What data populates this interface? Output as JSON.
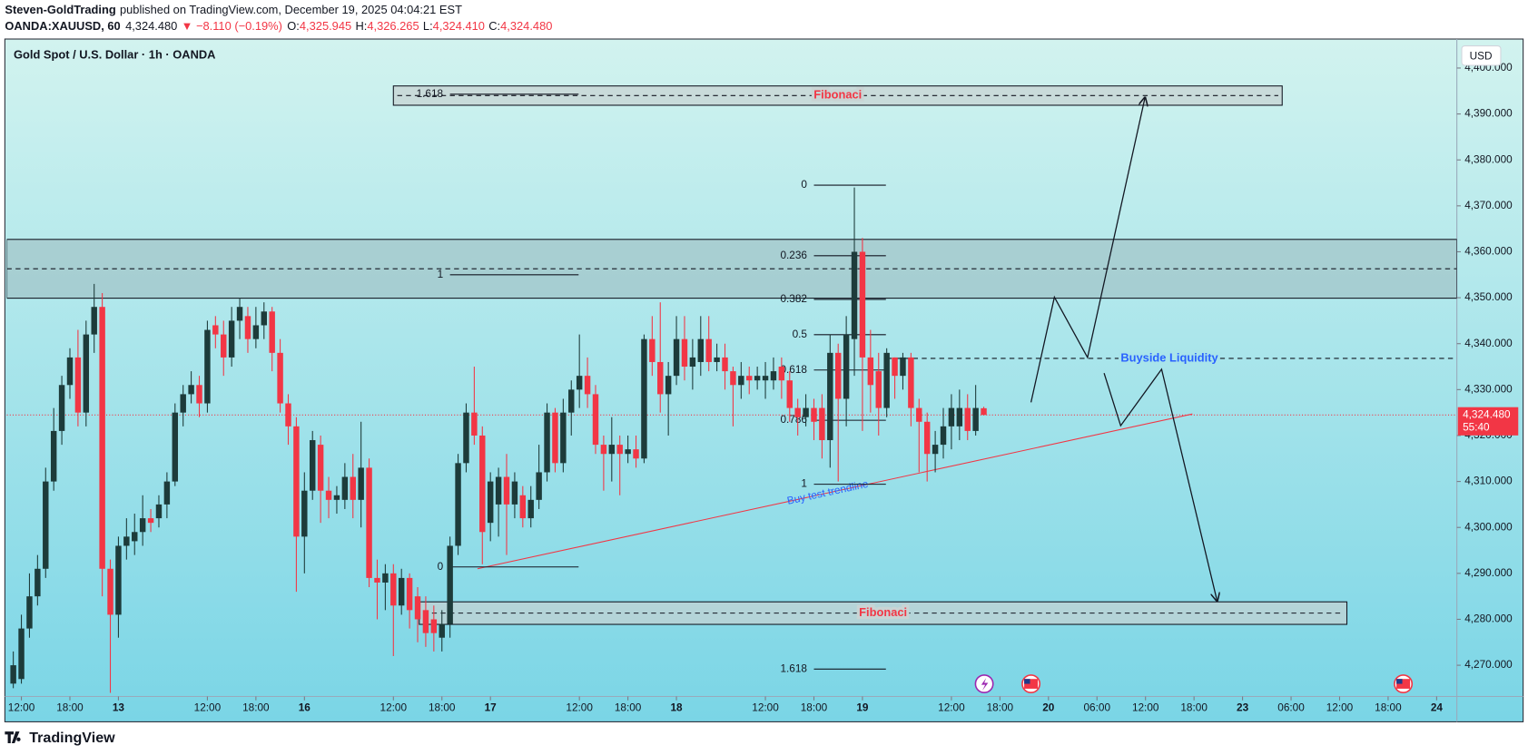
{
  "header": {
    "author": "Steven-GoldTrading",
    "published": "published on TradingView.com, December 19, 2025 04:04:21 EST",
    "symbol": "OANDA:XAUUSD, 60",
    "last": "4,324.480",
    "change": "▼ −8.110 (−0.19%)",
    "ohlc": [
      {
        "label": "O:",
        "value": "4,325.945"
      },
      {
        "label": "H:",
        "value": "4,326.265"
      },
      {
        "label": "L:",
        "value": "4,324.410"
      },
      {
        "label": "C:",
        "value": "4,324.480"
      }
    ]
  },
  "footer": {
    "brand": "TradingView"
  },
  "chart_data": {
    "type": "candlestick",
    "title": "Gold Spot / U.S. Dollar · 1h · OANDA",
    "currency": "USD",
    "up_color": "#1d3b3a",
    "down_color": "#f23645",
    "grid": false,
    "xlim": [
      -1.8,
      177.5
    ],
    "xticks": [
      {
        "value": 0,
        "label": "12:00"
      },
      {
        "value": 6,
        "label": "18:00"
      },
      {
        "value": 12,
        "label": "13"
      },
      {
        "value": 23,
        "label": "12:00"
      },
      {
        "value": 29,
        "label": "18:00"
      },
      {
        "value": 35,
        "label": "16"
      },
      {
        "value": 46,
        "label": "12:00"
      },
      {
        "value": 52,
        "label": "18:00"
      },
      {
        "value": 58,
        "label": "17"
      },
      {
        "value": 69,
        "label": "12:00"
      },
      {
        "value": 75,
        "label": "18:00"
      },
      {
        "value": 81,
        "label": "18"
      },
      {
        "value": 92,
        "label": "12:00"
      },
      {
        "value": 98,
        "label": "18:00"
      },
      {
        "value": 104,
        "label": "19"
      },
      {
        "value": 115,
        "label": "12:00"
      },
      {
        "value": 121,
        "label": "18:00"
      },
      {
        "value": 127,
        "label": "20"
      },
      {
        "value": 133,
        "label": "06:00"
      },
      {
        "value": 139,
        "label": "12:00"
      },
      {
        "value": 145,
        "label": "18:00"
      },
      {
        "value": 151,
        "label": "23"
      },
      {
        "value": 157,
        "label": "06:00"
      },
      {
        "value": 163,
        "label": "12:00"
      },
      {
        "value": 169,
        "label": "18:00"
      },
      {
        "value": 175,
        "label": "24"
      }
    ],
    "ylim": [
      4263.2,
      4406.1
    ],
    "yticks": [
      {
        "value": 4270,
        "label": "4,270.000"
      },
      {
        "value": 4280,
        "label": "4,280.000"
      },
      {
        "value": 4290,
        "label": "4,290.000"
      },
      {
        "value": 4300,
        "label": "4,300.000"
      },
      {
        "value": 4310,
        "label": "4,310.000"
      },
      {
        "value": 4320,
        "label": "4,320.000"
      },
      {
        "value": 4330,
        "label": "4,330.000"
      },
      {
        "value": 4340,
        "label": "4,340.000"
      },
      {
        "value": 4350,
        "label": "4,350.000"
      },
      {
        "value": 4360,
        "label": "4,360.000"
      },
      {
        "value": 4370,
        "label": "4,370.000"
      },
      {
        "value": 4380,
        "label": "4,380.000"
      },
      {
        "value": 4390,
        "label": "4,390.000"
      },
      {
        "value": 4400,
        "label": "4,400.000"
      }
    ],
    "last_price": {
      "value": 4324.48,
      "label": "4,324.480"
    },
    "countdown": "55:40",
    "candles": [
      {
        "x": -1,
        "o": 4266,
        "h": 4273,
        "l": 4265,
        "c": 4270
      },
      {
        "x": 0,
        "o": 4267,
        "h": 4281,
        "l": 4266,
        "c": 4278
      },
      {
        "x": 1,
        "o": 4278,
        "h": 4290,
        "l": 4276,
        "c": 4285
      },
      {
        "x": 2,
        "o": 4285,
        "h": 4294,
        "l": 4283,
        "c": 4291
      },
      {
        "x": 3,
        "o": 4291,
        "h": 4313,
        "l": 4289,
        "c": 4310
      },
      {
        "x": 4,
        "o": 4310,
        "h": 4326,
        "l": 4308,
        "c": 4321
      },
      {
        "x": 5,
        "o": 4321,
        "h": 4333,
        "l": 4318,
        "c": 4331
      },
      {
        "x": 6,
        "o": 4331,
        "h": 4339,
        "l": 4328,
        "c": 4337
      },
      {
        "x": 7,
        "o": 4337,
        "h": 4343,
        "l": 4322,
        "c": 4325
      },
      {
        "x": 8,
        "o": 4325,
        "h": 4345,
        "l": 4322,
        "c": 4342
      },
      {
        "x": 9,
        "o": 4342,
        "h": 4353,
        "l": 4338,
        "c": 4348
      },
      {
        "x": 10,
        "o": 4348,
        "h": 4351,
        "l": 4285,
        "c": 4291
      },
      {
        "x": 11,
        "o": 4291,
        "h": 4293,
        "l": 4264,
        "c": 4281
      },
      {
        "x": 12,
        "o": 4281,
        "h": 4298,
        "l": 4276,
        "c": 4296
      },
      {
        "x": 13,
        "o": 4296,
        "h": 4302,
        "l": 4293,
        "c": 4298
      },
      {
        "x": 14,
        "o": 4297,
        "h": 4303,
        "l": 4294,
        "c": 4299
      },
      {
        "x": 15,
        "o": 4299,
        "h": 4307,
        "l": 4296,
        "c": 4302
      },
      {
        "x": 16,
        "o": 4302,
        "h": 4304,
        "l": 4299,
        "c": 4301
      },
      {
        "x": 17,
        "o": 4302,
        "h": 4307,
        "l": 4300,
        "c": 4305
      },
      {
        "x": 18,
        "o": 4305,
        "h": 4312,
        "l": 4302,
        "c": 4310
      },
      {
        "x": 19,
        "o": 4310,
        "h": 4327,
        "l": 4309,
        "c": 4325
      },
      {
        "x": 20,
        "o": 4325,
        "h": 4331,
        "l": 4322,
        "c": 4329
      },
      {
        "x": 21,
        "o": 4329,
        "h": 4334,
        "l": 4327,
        "c": 4331
      },
      {
        "x": 22,
        "o": 4331,
        "h": 4333,
        "l": 4324,
        "c": 4327
      },
      {
        "x": 23,
        "o": 4327,
        "h": 4345,
        "l": 4325,
        "c": 4343
      },
      {
        "x": 24,
        "o": 4344,
        "h": 4346,
        "l": 4339,
        "c": 4342
      },
      {
        "x": 25,
        "o": 4342,
        "h": 4345,
        "l": 4333,
        "c": 4337
      },
      {
        "x": 26,
        "o": 4337,
        "h": 4348,
        "l": 4335,
        "c": 4345
      },
      {
        "x": 27,
        "o": 4345,
        "h": 4350,
        "l": 4341,
        "c": 4348
      },
      {
        "x": 28,
        "o": 4346,
        "h": 4348,
        "l": 4338,
        "c": 4341
      },
      {
        "x": 29,
        "o": 4341,
        "h": 4348,
        "l": 4339,
        "c": 4344
      },
      {
        "x": 30,
        "o": 4344,
        "h": 4349,
        "l": 4341,
        "c": 4347
      },
      {
        "x": 31,
        "o": 4347,
        "h": 4348,
        "l": 4334,
        "c": 4338
      },
      {
        "x": 32,
        "o": 4338,
        "h": 4341,
        "l": 4325,
        "c": 4327
      },
      {
        "x": 33,
        "o": 4327,
        "h": 4329,
        "l": 4318,
        "c": 4322
      },
      {
        "x": 34,
        "o": 4322,
        "h": 4324,
        "l": 4286,
        "c": 4298
      },
      {
        "x": 35,
        "o": 4298,
        "h": 4312,
        "l": 4290,
        "c": 4308
      },
      {
        "x": 36,
        "o": 4308,
        "h": 4321,
        "l": 4306,
        "c": 4319
      },
      {
        "x": 37,
        "o": 4318,
        "h": 4320,
        "l": 4301,
        "c": 4308
      },
      {
        "x": 38,
        "o": 4308,
        "h": 4311,
        "l": 4302,
        "c": 4306
      },
      {
        "x": 39,
        "o": 4306,
        "h": 4309,
        "l": 4303,
        "c": 4307
      },
      {
        "x": 40,
        "o": 4306,
        "h": 4314,
        "l": 4304,
        "c": 4311
      },
      {
        "x": 41,
        "o": 4311,
        "h": 4316,
        "l": 4302,
        "c": 4306
      },
      {
        "x": 42,
        "o": 4306,
        "h": 4323,
        "l": 4300,
        "c": 4313
      },
      {
        "x": 43,
        "o": 4313,
        "h": 4315,
        "l": 4287,
        "c": 4289
      },
      {
        "x": 44,
        "o": 4289,
        "h": 4293,
        "l": 4280,
        "c": 4288
      },
      {
        "x": 45,
        "o": 4288,
        "h": 4292,
        "l": 4282,
        "c": 4290
      },
      {
        "x": 46,
        "o": 4290,
        "h": 4292,
        "l": 4272,
        "c": 4283
      },
      {
        "x": 47,
        "o": 4283,
        "h": 4291,
        "l": 4281,
        "c": 4289
      },
      {
        "x": 48,
        "o": 4289,
        "h": 4290,
        "l": 4278,
        "c": 4282
      },
      {
        "x": 49,
        "o": 4285,
        "h": 4287,
        "l": 4275,
        "c": 4280
      },
      {
        "x": 50,
        "o": 4282,
        "h": 4285,
        "l": 4274,
        "c": 4277
      },
      {
        "x": 51,
        "o": 4280,
        "h": 4283,
        "l": 4273,
        "c": 4277
      },
      {
        "x": 52,
        "o": 4276,
        "h": 4282,
        "l": 4273,
        "c": 4279
      },
      {
        "x": 53,
        "o": 4279,
        "h": 4298,
        "l": 4276,
        "c": 4296
      },
      {
        "x": 54,
        "o": 4296,
        "h": 4316,
        "l": 4294,
        "c": 4314
      },
      {
        "x": 55,
        "o": 4314,
        "h": 4327,
        "l": 4312,
        "c": 4325
      },
      {
        "x": 56,
        "o": 4325,
        "h": 4335,
        "l": 4318,
        "c": 4320
      },
      {
        "x": 57,
        "o": 4320,
        "h": 4322,
        "l": 4292,
        "c": 4299
      },
      {
        "x": 58,
        "o": 4301,
        "h": 4312,
        "l": 4297,
        "c": 4310
      },
      {
        "x": 59,
        "o": 4305,
        "h": 4313,
        "l": 4298,
        "c": 4311
      },
      {
        "x": 60,
        "o": 4311,
        "h": 4316,
        "l": 4294,
        "c": 4305
      },
      {
        "x": 61,
        "o": 4305,
        "h": 4312,
        "l": 4302,
        "c": 4310
      },
      {
        "x": 62,
        "o": 4307,
        "h": 4309,
        "l": 4300,
        "c": 4302
      },
      {
        "x": 63,
        "o": 4302,
        "h": 4309,
        "l": 4300,
        "c": 4306
      },
      {
        "x": 64,
        "o": 4306,
        "h": 4318,
        "l": 4304,
        "c": 4312
      },
      {
        "x": 65,
        "o": 4312,
        "h": 4327,
        "l": 4310,
        "c": 4325
      },
      {
        "x": 66,
        "o": 4325,
        "h": 4326,
        "l": 4312,
        "c": 4314
      },
      {
        "x": 67,
        "o": 4314,
        "h": 4328,
        "l": 4312,
        "c": 4325
      },
      {
        "x": 68,
        "o": 4325,
        "h": 4332,
        "l": 4320,
        "c": 4330
      },
      {
        "x": 69,
        "o": 4330,
        "h": 4342,
        "l": 4326,
        "c": 4333
      },
      {
        "x": 70,
        "o": 4333,
        "h": 4337,
        "l": 4326,
        "c": 4329
      },
      {
        "x": 71,
        "o": 4329,
        "h": 4331,
        "l": 4316,
        "c": 4318
      },
      {
        "x": 72,
        "o": 4318,
        "h": 4320,
        "l": 4308,
        "c": 4316
      },
      {
        "x": 73,
        "o": 4316,
        "h": 4324,
        "l": 4310,
        "c": 4318
      },
      {
        "x": 74,
        "o": 4318,
        "h": 4320,
        "l": 4307,
        "c": 4316
      },
      {
        "x": 75,
        "o": 4316,
        "h": 4320,
        "l": 4314,
        "c": 4317
      },
      {
        "x": 76,
        "o": 4317,
        "h": 4320,
        "l": 4313,
        "c": 4315
      },
      {
        "x": 77,
        "o": 4315,
        "h": 4342,
        "l": 4314,
        "c": 4341
      },
      {
        "x": 78,
        "o": 4341,
        "h": 4346,
        "l": 4333,
        "c": 4336
      },
      {
        "x": 79,
        "o": 4336,
        "h": 4349,
        "l": 4325,
        "c": 4329
      },
      {
        "x": 80,
        "o": 4329,
        "h": 4336,
        "l": 4320,
        "c": 4333
      },
      {
        "x": 81,
        "o": 4333,
        "h": 4346,
        "l": 4331,
        "c": 4341
      },
      {
        "x": 82,
        "o": 4341,
        "h": 4346,
        "l": 4332,
        "c": 4335
      },
      {
        "x": 83,
        "o": 4335,
        "h": 4341,
        "l": 4330,
        "c": 4337
      },
      {
        "x": 84,
        "o": 4336,
        "h": 4346,
        "l": 4333,
        "c": 4341
      },
      {
        "x": 85,
        "o": 4341,
        "h": 4346,
        "l": 4334,
        "c": 4336
      },
      {
        "x": 86,
        "o": 4336,
        "h": 4340,
        "l": 4334,
        "c": 4337
      },
      {
        "x": 87,
        "o": 4337,
        "h": 4340,
        "l": 4330,
        "c": 4334
      },
      {
        "x": 88,
        "o": 4334,
        "h": 4335,
        "l": 4322,
        "c": 4331
      },
      {
        "x": 89,
        "o": 4331,
        "h": 4336,
        "l": 4328,
        "c": 4333
      },
      {
        "x": 90,
        "o": 4333,
        "h": 4335,
        "l": 4329,
        "c": 4332
      },
      {
        "x": 91,
        "o": 4332,
        "h": 4335,
        "l": 4330,
        "c": 4333
      },
      {
        "x": 92,
        "o": 4332,
        "h": 4336,
        "l": 4328,
        "c": 4333
      },
      {
        "x": 93,
        "o": 4332,
        "h": 4337,
        "l": 4330,
        "c": 4334
      },
      {
        "x": 94,
        "o": 4335,
        "h": 4337,
        "l": 4328,
        "c": 4332
      },
      {
        "x": 95,
        "o": 4332,
        "h": 4334,
        "l": 4323,
        "c": 4326
      },
      {
        "x": 96,
        "o": 4326,
        "h": 4328,
        "l": 4320,
        "c": 4324
      },
      {
        "x": 97,
        "o": 4324,
        "h": 4329,
        "l": 4322,
        "c": 4326
      },
      {
        "x": 98,
        "o": 4326,
        "h": 4328,
        "l": 4319,
        "c": 4323
      },
      {
        "x": 99,
        "o": 4326,
        "h": 4329,
        "l": 4315,
        "c": 4319
      },
      {
        "x": 100,
        "o": 4319,
        "h": 4342,
        "l": 4313,
        "c": 4338
      },
      {
        "x": 101,
        "o": 4338,
        "h": 4340,
        "l": 4310,
        "c": 4328
      },
      {
        "x": 102,
        "o": 4328,
        "h": 4346,
        "l": 4322,
        "c": 4342
      },
      {
        "x": 103,
        "o": 4341,
        "h": 4374,
        "l": 4333,
        "c": 4360
      },
      {
        "x": 104,
        "o": 4360,
        "h": 4363,
        "l": 4321,
        "c": 4337
      },
      {
        "x": 105,
        "o": 4337,
        "h": 4343,
        "l": 4325,
        "c": 4331
      },
      {
        "x": 106,
        "o": 4334,
        "h": 4338,
        "l": 4320,
        "c": 4326
      },
      {
        "x": 107,
        "o": 4326,
        "h": 4339,
        "l": 4324,
        "c": 4338
      },
      {
        "x": 108,
        "o": 4337,
        "h": 4337,
        "l": 4328,
        "c": 4333
      },
      {
        "x": 109,
        "o": 4333,
        "h": 4338,
        "l": 4330,
        "c": 4337
      },
      {
        "x": 110,
        "o": 4337,
        "h": 4338,
        "l": 4322,
        "c": 4326
      },
      {
        "x": 111,
        "o": 4326,
        "h": 4328,
        "l": 4312,
        "c": 4323
      },
      {
        "x": 112,
        "o": 4323,
        "h": 4325,
        "l": 4310,
        "c": 4316
      },
      {
        "x": 113,
        "o": 4316,
        "h": 4321,
        "l": 4312,
        "c": 4318
      },
      {
        "x": 114,
        "o": 4318,
        "h": 4326,
        "l": 4315,
        "c": 4322
      },
      {
        "x": 115,
        "o": 4322,
        "h": 4329,
        "l": 4317,
        "c": 4326
      },
      {
        "x": 116,
        "o": 4322,
        "h": 4330,
        "l": 4319,
        "c": 4326
      },
      {
        "x": 117,
        "o": 4326,
        "h": 4329,
        "l": 4319,
        "c": 4321
      },
      {
        "x": 118,
        "o": 4321,
        "h": 4331,
        "l": 4320,
        "c": 4326
      },
      {
        "x": 119,
        "o": 4325.945,
        "h": 4326.265,
        "l": 4324.41,
        "c": 4324.48
      }
    ],
    "zone": {
      "top": 4362.7,
      "bottom": 4349.9,
      "mid": 4356.3
    },
    "boxes": [
      {
        "label": "Fibonaci",
        "x": [
          46,
          155.9
        ],
        "top": 4396.1,
        "bottom": 4391.9
      },
      {
        "label": "Fibonaci",
        "x": [
          49.2,
          163.9
        ],
        "top": 4283.8,
        "bottom": 4278.9
      }
    ],
    "fibs": [
      {
        "x": [
          53,
          68.9
        ],
        "price_0": 4291.4,
        "price_1": 4355.0,
        "levels": [
          0,
          1,
          1.618
        ]
      },
      {
        "x": [
          98,
          106.9
        ],
        "price_0": 4374.5,
        "price_1": 4309.4,
        "levels": [
          0,
          0.236,
          0.382,
          0.5,
          0.618,
          0.786,
          1,
          1.618
        ]
      }
    ],
    "liquidity": {
      "label": "Buyside Liquidity",
      "price": 4336.8,
      "x_start": 107
    },
    "trendline": {
      "label": "Buy test trendline",
      "x": [
        56.4,
        144.8
      ],
      "y": [
        4291.0,
        4324.7
      ]
    }
  }
}
